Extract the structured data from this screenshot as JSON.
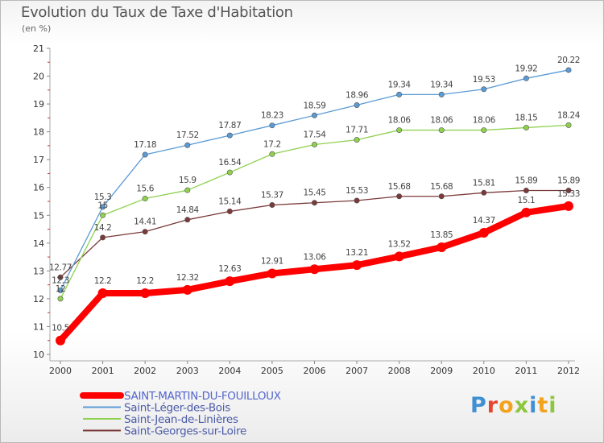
{
  "title": "Evolution du Taux de Taxe d'Habitation",
  "subtitle": "(en %)",
  "logo": {
    "letters": [
      "P",
      "r",
      "o",
      "x",
      "i",
      "t",
      "i"
    ],
    "colors": [
      "#3f8fd3",
      "#e6462e",
      "#f2a21c",
      "#8dc63f",
      "#3f8fd3",
      "#f2a21c",
      "#8dc63f"
    ]
  },
  "chart_data": {
    "type": "line",
    "x": [
      "2000",
      "2001",
      "2002",
      "2003",
      "2004",
      "2005",
      "2006",
      "2007",
      "2008",
      "2009",
      "2010",
      "2011",
      "2012"
    ],
    "ylim": [
      10,
      21
    ],
    "yticks": [
      "10",
      "11",
      "12",
      "13",
      "14",
      "15",
      "16",
      "17",
      "18",
      "19",
      "20",
      "21"
    ],
    "grid": false,
    "legend_position": "bottom-left",
    "series": [
      {
        "name": "SAINT-MARTIN-DU-FOUILLOUX",
        "color": "#ff0000",
        "values": [
          10.5,
          12.2,
          12.2,
          12.32,
          12.63,
          12.91,
          13.06,
          13.21,
          13.52,
          13.85,
          14.37,
          15.1,
          15.33
        ],
        "labels": [
          "10.5",
          "12.2",
          "12.2",
          "12.32",
          "12.63",
          "12.91",
          "13.06",
          "13.21",
          "13.52",
          "13.85",
          "14.37",
          "15.1",
          "15.33"
        ]
      },
      {
        "name": "Saint-Léger-des-Bois",
        "color": "#5b9bd5",
        "values": [
          12.3,
          15.3,
          17.18,
          17.52,
          17.87,
          18.23,
          18.59,
          18.96,
          19.34,
          19.34,
          19.53,
          19.92,
          20.22
        ],
        "labels": [
          "12.3",
          "15.3",
          "17.18",
          "17.52",
          "17.87",
          "18.23",
          "18.59",
          "18.96",
          "19.34",
          "19.34",
          "19.53",
          "19.92",
          "20.22"
        ]
      },
      {
        "name": "Saint-Jean-de-Linières",
        "color": "#8fd14f",
        "values": [
          12.0,
          15.0,
          15.6,
          15.9,
          16.54,
          17.2,
          17.54,
          17.71,
          18.06,
          18.06,
          18.06,
          18.15,
          18.24
        ],
        "labels": [
          "12",
          "15",
          "15.6",
          "15.9",
          "16.54",
          "17.2",
          "17.54",
          "17.71",
          "18.06",
          "18.06",
          "18.06",
          "18.15",
          "18.24"
        ]
      },
      {
        "name": "Saint-Georges-sur-Loire",
        "color": "#7b3a3a",
        "values": [
          12.77,
          14.2,
          14.41,
          14.84,
          15.14,
          15.37,
          15.45,
          15.53,
          15.68,
          15.68,
          15.81,
          15.89,
          15.89
        ],
        "labels": [
          "12.77",
          "14.2",
          "14.41",
          "14.84",
          "15.14",
          "15.37",
          "15.45",
          "15.53",
          "15.68",
          "15.68",
          "15.81",
          "15.89",
          "15.89"
        ]
      }
    ]
  }
}
